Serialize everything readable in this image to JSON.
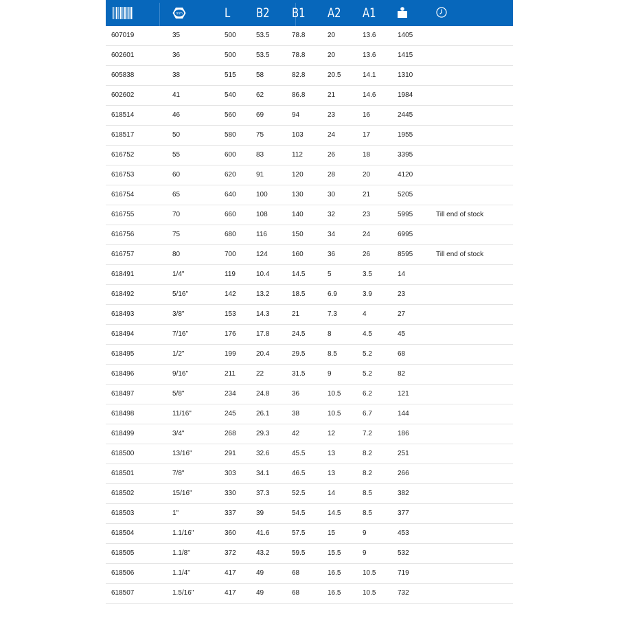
{
  "header": {
    "columns": [
      {
        "icon": "barcode-icon",
        "label": ""
      },
      {
        "icon": "hex-nut-mm-icon",
        "label": ""
      },
      {
        "label": "L"
      },
      {
        "label": "B2"
      },
      {
        "label": "B1"
      },
      {
        "label": "A2"
      },
      {
        "label": "A1"
      },
      {
        "icon": "weight-icon",
        "label": ""
      },
      {
        "icon": "clock-icon",
        "label": ""
      }
    ],
    "color": "#0767bb"
  },
  "rows": [
    [
      "607019",
      "35",
      "500",
      "53.5",
      "78.8",
      "20",
      "13.6",
      "1405",
      ""
    ],
    [
      "602601",
      "36",
      "500",
      "53.5",
      "78.8",
      "20",
      "13.6",
      "1415",
      ""
    ],
    [
      "605838",
      "38",
      "515",
      "58",
      "82.8",
      "20.5",
      "14.1",
      "1310",
      ""
    ],
    [
      "602602",
      "41",
      "540",
      "62",
      "86.8",
      "21",
      "14.6",
      "1984",
      ""
    ],
    [
      "618514",
      "46",
      "560",
      "69",
      "94",
      "23",
      "16",
      "2445",
      ""
    ],
    [
      "618517",
      "50",
      "580",
      "75",
      "103",
      "24",
      "17",
      "1955",
      ""
    ],
    [
      "616752",
      "55",
      "600",
      "83",
      "112",
      "26",
      "18",
      "3395",
      ""
    ],
    [
      "616753",
      "60",
      "620",
      "91",
      "120",
      "28",
      "20",
      "4120",
      ""
    ],
    [
      "616754",
      "65",
      "640",
      "100",
      "130",
      "30",
      "21",
      "5205",
      ""
    ],
    [
      "616755",
      "70",
      "660",
      "108",
      "140",
      "32",
      "23",
      "5995",
      "Till end of stock"
    ],
    [
      "616756",
      "75",
      "680",
      "116",
      "150",
      "34",
      "24",
      "6995",
      ""
    ],
    [
      "616757",
      "80",
      "700",
      "124",
      "160",
      "36",
      "26",
      "8595",
      "Till end of stock"
    ],
    [
      "618491",
      "1/4\"",
      "119",
      "10.4",
      "14.5",
      "5",
      "3.5",
      "14",
      ""
    ],
    [
      "618492",
      "5/16\"",
      "142",
      "13.2",
      "18.5",
      "6.9",
      "3.9",
      "23",
      ""
    ],
    [
      "618493",
      "3/8\"",
      "153",
      "14.3",
      "21",
      "7.3",
      "4",
      "27",
      ""
    ],
    [
      "618494",
      "7/16\"",
      "176",
      "17.8",
      "24.5",
      "8",
      "4.5",
      "45",
      ""
    ],
    [
      "618495",
      "1/2\"",
      "199",
      "20.4",
      "29.5",
      "8.5",
      "5.2",
      "68",
      ""
    ],
    [
      "618496",
      "9/16\"",
      "211",
      "22",
      "31.5",
      "9",
      "5.2",
      "82",
      ""
    ],
    [
      "618497",
      "5/8\"",
      "234",
      "24.8",
      "36",
      "10.5",
      "6.2",
      "121",
      ""
    ],
    [
      "618498",
      "11/16\"",
      "245",
      "26.1",
      "38",
      "10.5",
      "6.7",
      "144",
      ""
    ],
    [
      "618499",
      "3/4\"",
      "268",
      "29.3",
      "42",
      "12",
      "7.2",
      "186",
      ""
    ],
    [
      "618500",
      "13/16\"",
      "291",
      "32.6",
      "45.5",
      "13",
      "8.2",
      "251",
      ""
    ],
    [
      "618501",
      "7/8\"",
      "303",
      "34.1",
      "46.5",
      "13",
      "8.2",
      "266",
      ""
    ],
    [
      "618502",
      "15/16\"",
      "330",
      "37.3",
      "52.5",
      "14",
      "8.5",
      "382",
      ""
    ],
    [
      "618503",
      "1\"",
      "337",
      "39",
      "54.5",
      "14.5",
      "8.5",
      "377",
      ""
    ],
    [
      "618504",
      "1.1/16\"",
      "360",
      "41.6",
      "57.5",
      "15",
      "9",
      "453",
      ""
    ],
    [
      "618505",
      "1.1/8\"",
      "372",
      "43.2",
      "59.5",
      "15.5",
      "9",
      "532",
      ""
    ],
    [
      "618506",
      "1.1/4\"",
      "417",
      "49",
      "68",
      "16.5",
      "10.5",
      "719",
      ""
    ],
    [
      "618507",
      "1.5/16\"",
      "417",
      "49",
      "68",
      "16.5",
      "10.5",
      "732",
      ""
    ]
  ]
}
